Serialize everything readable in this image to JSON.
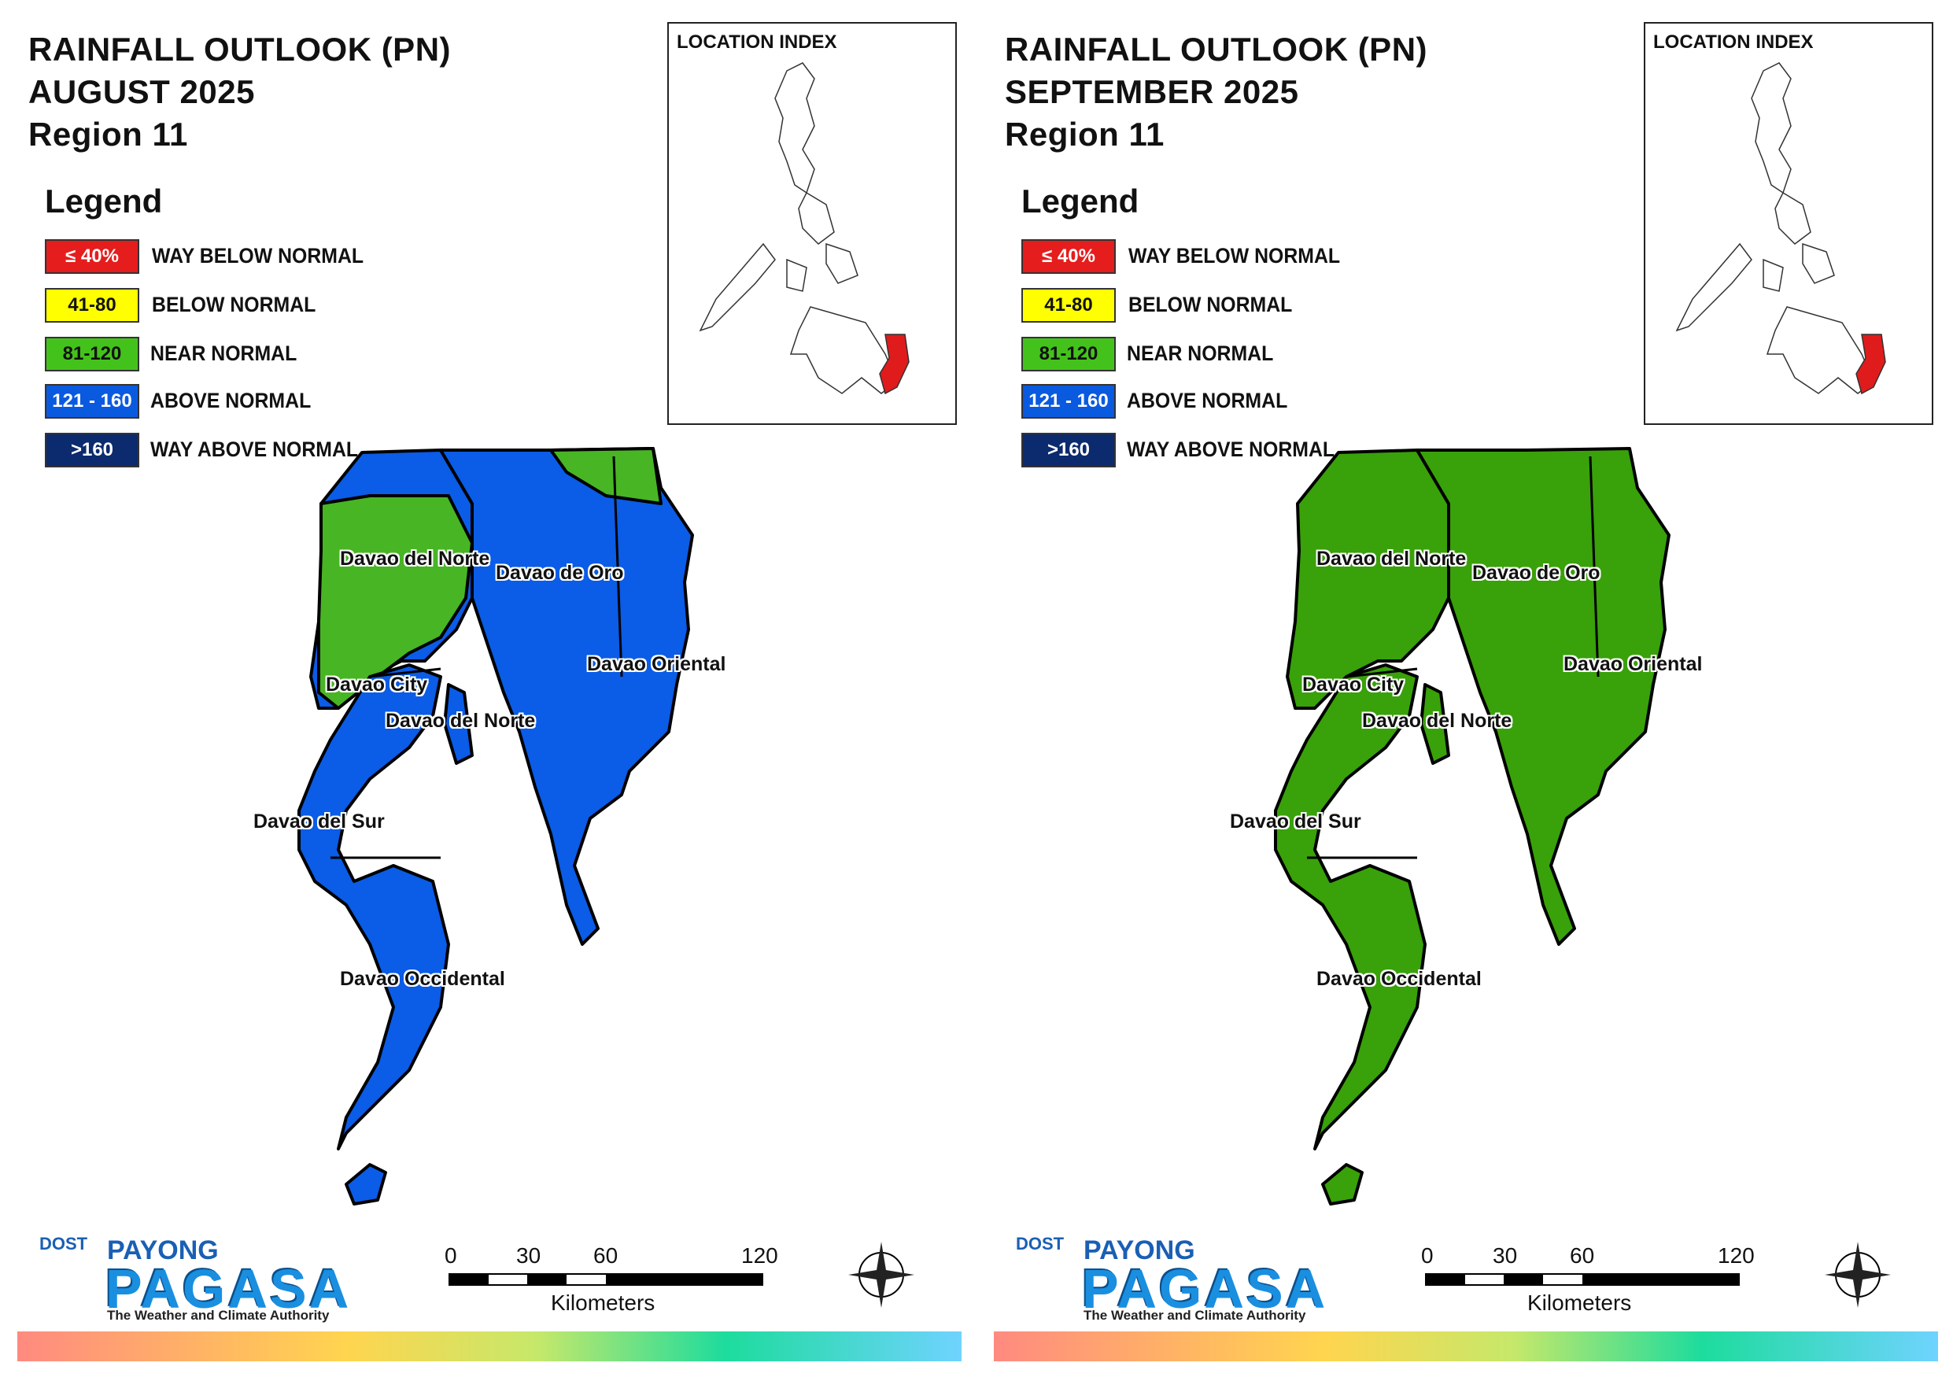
{
  "panels": [
    {
      "title_line1": "RAINFALL OUTLOOK (PN)",
      "title_line2": "AUGUST 2025",
      "title_line3": "Region 11",
      "labels": {
        "davao_del_norte_a": "Davao del Norte",
        "davao_de_oro": "Davao de Oro",
        "davao_oriental": "Davao Oriental",
        "davao_city": "Davao City",
        "davao_del_norte_b": "Davao del Norte",
        "davao_del_sur": "Davao del Sur",
        "davao_occidental": "Davao Occidental"
      },
      "fills": {
        "primary": "#0b5ce6",
        "secondary": "#48b524"
      }
    },
    {
      "title_line1": "RAINFALL OUTLOOK (PN)",
      "title_line2": "SEPTEMBER 2025",
      "title_line3": "Region 11",
      "labels": {
        "davao_del_norte_a": "Davao del Norte",
        "davao_de_oro": "Davao de Oro",
        "davao_oriental": "Davao Oriental",
        "davao_city": "Davao City",
        "davao_del_norte_b": "Davao del Norte",
        "davao_del_sur": "Davao del Sur",
        "davao_occidental": "Davao Occidental"
      },
      "fills": {
        "primary": "#39a10a",
        "secondary": "#39a10a"
      }
    }
  ],
  "legend": {
    "title": "Legend",
    "items": [
      {
        "range": "≤ 40%",
        "label": "WAY BELOW NORMAL",
        "color": "#e51d1d",
        "text_color": "#ffffff"
      },
      {
        "range": "41-80",
        "label": "BELOW NORMAL",
        "color": "#ffff00",
        "text_color": "#111111"
      },
      {
        "range": "81-120",
        "label": "NEAR NORMAL",
        "color": "#44c21c",
        "text_color": "#111111"
      },
      {
        "range": "121 - 160",
        "label": "ABOVE NORMAL",
        "color": "#0a5ae0",
        "text_color": "#ffffff"
      },
      {
        "range": ">160",
        "label": "WAY ABOVE NORMAL",
        "color": "#0c2a6e",
        "text_color": "#ffffff"
      }
    ]
  },
  "location_index": {
    "title": "LOCATION INDEX",
    "highlight_color": "#e01b1b"
  },
  "scale_bar": {
    "ticks": [
      "0",
      "30",
      "60",
      "120"
    ],
    "unit": "Kilometers"
  },
  "compass": {
    "n": "N",
    "s": "S",
    "e": "E",
    "w": "W"
  },
  "logo": {
    "dost": "DOST",
    "payong": "PAYONG",
    "pagasa": "PAGASA",
    "tagline": "The Weather and Climate Authority"
  }
}
